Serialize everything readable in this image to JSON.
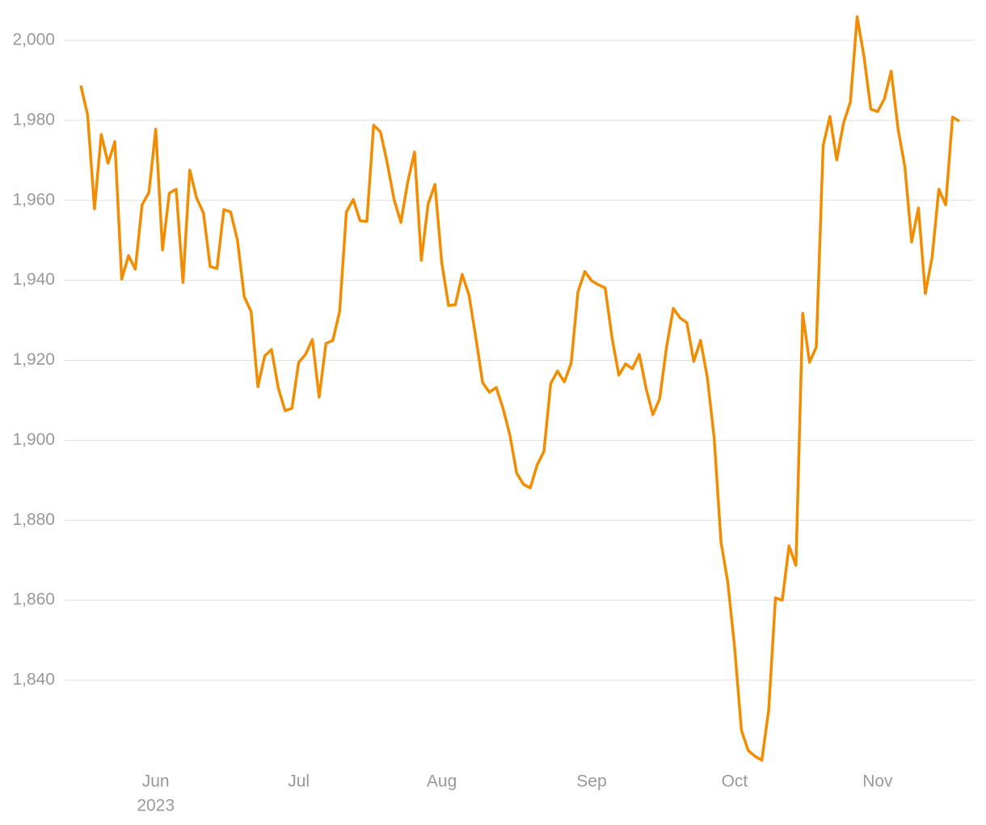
{
  "chart_data": {
    "type": "line",
    "categories": [
      null,
      null,
      null,
      null,
      null,
      null,
      null,
      null,
      null,
      null,
      null,
      "Jun",
      null,
      null,
      null,
      null,
      null,
      null,
      null,
      null,
      null,
      null,
      null,
      null,
      null,
      null,
      null,
      null,
      null,
      null,
      null,
      null,
      "Jul",
      null,
      null,
      null,
      null,
      null,
      null,
      null,
      null,
      null,
      null,
      null,
      null,
      null,
      null,
      null,
      null,
      null,
      null,
      null,
      null,
      "Aug",
      null,
      null,
      null,
      null,
      null,
      null,
      null,
      null,
      null,
      null,
      null,
      null,
      null,
      null,
      null,
      null,
      null,
      null,
      null,
      null,
      null,
      "Sep",
      null,
      null,
      null,
      null,
      null,
      null,
      null,
      null,
      null,
      null,
      null,
      null,
      null,
      null,
      null,
      null,
      null,
      null,
      null,
      null,
      "Oct",
      null,
      null,
      null,
      null,
      null,
      null,
      null,
      null,
      null,
      null,
      null,
      null,
      null,
      null,
      null,
      null,
      null,
      null,
      null,
      null,
      "Nov",
      null,
      null,
      null,
      null,
      null,
      null,
      null,
      null,
      null,
      null,
      null,
      null
    ],
    "year_label": "2023",
    "series": [
      {
        "color": "#f28c00",
        "values": [
          1988.7,
          1981.4,
          1957.9,
          1976.5,
          1969.3,
          1974.7,
          1940.3,
          1946.2,
          1942.8,
          1958.9,
          1962.0,
          1977.8,
          1947.6,
          1961.8,
          1962.8,
          1939.5,
          1967.6,
          1960.6,
          1956.9,
          1943.4,
          1943.0,
          1957.7,
          1957.1,
          1950.0,
          1935.9,
          1932.2,
          1913.4,
          1921.1,
          1922.7,
          1913.0,
          1907.4,
          1908.0,
          1919.5,
          1921.5,
          1925.2,
          1910.8,
          1924.2,
          1925.0,
          1932.2,
          1957.1,
          1960.2,
          1954.9,
          1954.7,
          1978.8,
          1977.1,
          1969.3,
          1960.2,
          1954.5,
          1964.6,
          1972.1,
          1945.0,
          1959.1,
          1964.0,
          1944.4,
          1933.7,
          1933.9,
          1941.5,
          1936.3,
          1925.8,
          1914.4,
          1912.0,
          1913.2,
          1908.0,
          1901.3,
          1891.8,
          1889.0,
          1888.1,
          1893.8,
          1897.2,
          1914.2,
          1917.3,
          1914.6,
          1919.3,
          1937.1,
          1942.2,
          1939.9,
          1938.9,
          1938.1,
          1925.6,
          1916.3,
          1919.1,
          1917.9,
          1921.5,
          1913.0,
          1906.4,
          1910.4,
          1923.3,
          1933.0,
          1930.6,
          1929.4,
          1919.7,
          1925.0,
          1915.7,
          1900.5,
          1874.6,
          1864.5,
          1848.3,
          1827.5,
          1822.4,
          1821.0,
          1820.0,
          1832.5,
          1860.6,
          1860.0,
          1873.6,
          1868.7,
          1931.8,
          1919.5,
          1923.3,
          1973.7,
          1981.0,
          1970.1,
          1979.4,
          1984.6,
          2005.9,
          1996.0,
          1982.8,
          1982.2,
          1985.4,
          1992.3,
          1977.8,
          1968.4,
          1949.6,
          1958.1,
          1936.7,
          1945.8,
          1962.8,
          1958.9,
          1980.8,
          1979.8
        ]
      }
    ],
    "ylim": [
      1818,
      2006
    ],
    "yticks": [
      {
        "value": 1840,
        "label": "1,840"
      },
      {
        "value": 1860,
        "label": "1,860"
      },
      {
        "value": 1880,
        "label": "1,880"
      },
      {
        "value": 1900,
        "label": "1,900"
      },
      {
        "value": 1920,
        "label": "1,920"
      },
      {
        "value": 1940,
        "label": "1,940"
      },
      {
        "value": 1960,
        "label": "1,960"
      },
      {
        "value": 1980,
        "label": "1,980"
      },
      {
        "value": 2000,
        "label": "2,000"
      }
    ],
    "grid": true
  }
}
